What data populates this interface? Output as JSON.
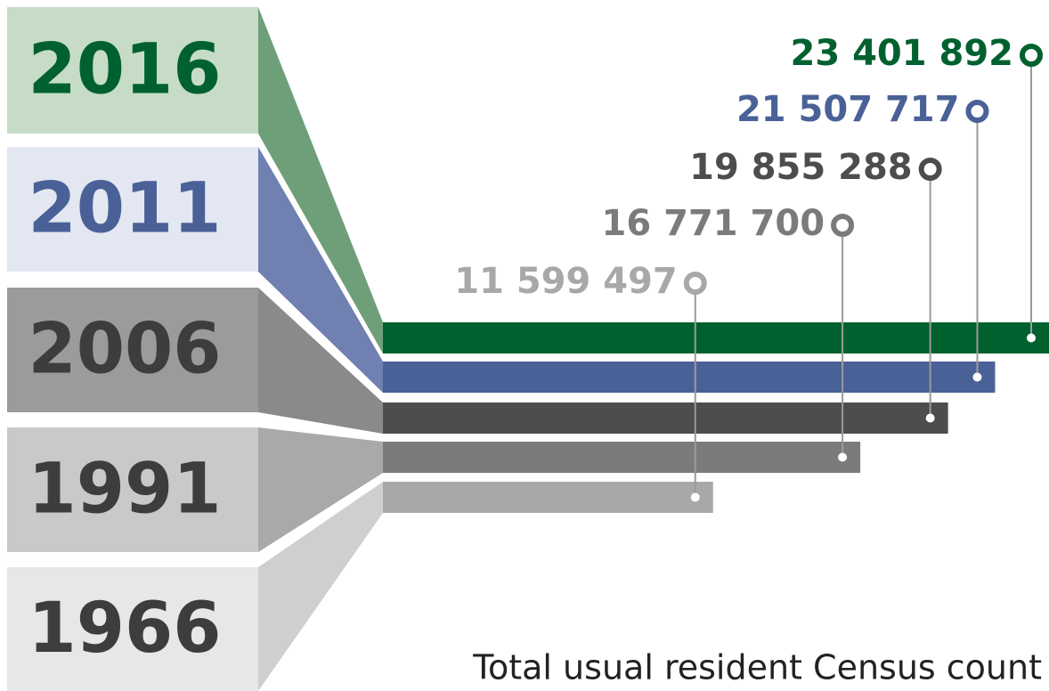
{
  "chart_data": {
    "type": "bar",
    "orientation": "horizontal",
    "caption": "Total usual resident Census count",
    "categories": [
      "2016",
      "2011",
      "2006",
      "1991",
      "1966"
    ],
    "values": [
      23401892,
      21507717,
      19855288,
      16771700,
      11599497
    ],
    "value_labels": [
      "23 401 892",
      "21 507 717",
      "19 855 288",
      "16 771 700",
      "11 599 497"
    ],
    "colors": [
      "#00612f",
      "#4a6197",
      "#4d4d4d",
      "#7b7b7b",
      "#a8a8a8"
    ]
  }
}
